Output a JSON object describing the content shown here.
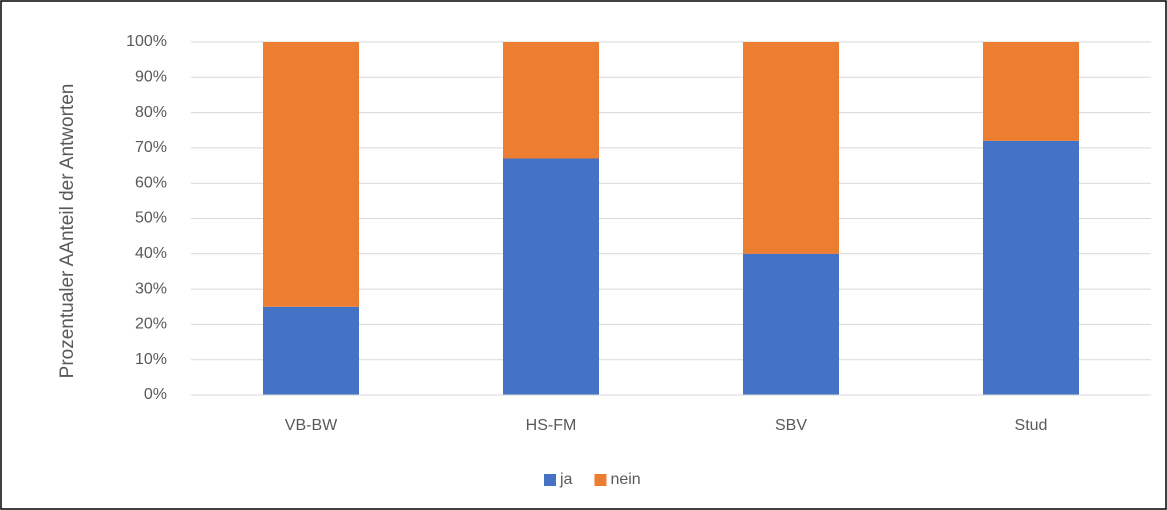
{
  "chart_data": {
    "type": "stacked_bar",
    "y_label": "Prozentualer AAnteil der Antworten",
    "categories": [
      "VB-BW",
      "HS-FM",
      "SBV",
      "Stud"
    ],
    "series": [
      {
        "name": "ja",
        "color": "#4472c4",
        "values": [
          25,
          67,
          40,
          72
        ]
      },
      {
        "name": "nein",
        "color": "#ed7d31",
        "values": [
          75,
          33,
          60,
          28
        ]
      }
    ],
    "ylim": [
      0,
      100
    ],
    "yticks": [
      {
        "value": 0,
        "label": "0%"
      },
      {
        "value": 10,
        "label": "10%"
      },
      {
        "value": 20,
        "label": "20%"
      },
      {
        "value": 30,
        "label": "30%"
      },
      {
        "value": 40,
        "label": "40%"
      },
      {
        "value": 50,
        "label": "50%"
      },
      {
        "value": 60,
        "label": "60%"
      },
      {
        "value": 70,
        "label": "70%"
      },
      {
        "value": 80,
        "label": "80%"
      },
      {
        "value": 90,
        "label": "90%"
      },
      {
        "value": 100,
        "label": "100%"
      }
    ],
    "grid": true,
    "legend": "bottom"
  }
}
